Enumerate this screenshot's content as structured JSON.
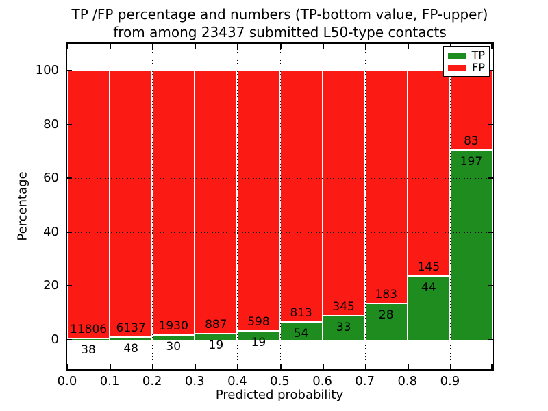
{
  "title": {
    "line1": "TP /FP percentage and numbers (TP-bottom value, FP-upper)",
    "line2": "from among 23437 submitted L50-type contacts"
  },
  "chart_data": {
    "type": "bar",
    "stacked": true,
    "title": "TP /FP percentage and numbers (TP-bottom value, FP-upper) from among 23437 submitted L50-type contacts",
    "xlabel": "Predicted probability",
    "ylabel": "Percentage",
    "total_contacts": 23437,
    "bin_width": 0.1,
    "bin_starts": [
      0.0,
      0.1,
      0.2,
      0.3,
      0.4,
      0.5,
      0.6,
      0.7,
      0.8,
      0.9
    ],
    "series": [
      {
        "name": "TP",
        "color": "#1e8c1e",
        "counts": [
          38,
          48,
          30,
          19,
          19,
          54,
          33,
          28,
          44,
          197
        ]
      },
      {
        "name": "FP",
        "color": "#fc1a15",
        "counts": [
          11806,
          6137,
          1930,
          887,
          598,
          813,
          345,
          183,
          145,
          83
        ]
      }
    ],
    "tp_percent_of_bin": [
      0.32,
      0.78,
      1.53,
      2.1,
      3.08,
      6.23,
      8.73,
      13.27,
      23.28,
      70.36
    ],
    "bars_total_percent": 100,
    "xticks": [
      "0.0",
      "0.1",
      "0.2",
      "0.3",
      "0.4",
      "0.5",
      "0.6",
      "0.7",
      "0.8",
      "0.9"
    ],
    "yticks": [
      0,
      20,
      40,
      60,
      80,
      100
    ],
    "xlim": [
      0,
      1
    ],
    "ylim": [
      -11,
      110
    ],
    "grid": "dotted-black",
    "bar_edge_color": "#ffffff",
    "legend": {
      "position": "upper-right",
      "entries": [
        {
          "label": "TP",
          "color": "#1e8c1e"
        },
        {
          "label": "FP",
          "color": "#fc1a15"
        }
      ]
    }
  }
}
